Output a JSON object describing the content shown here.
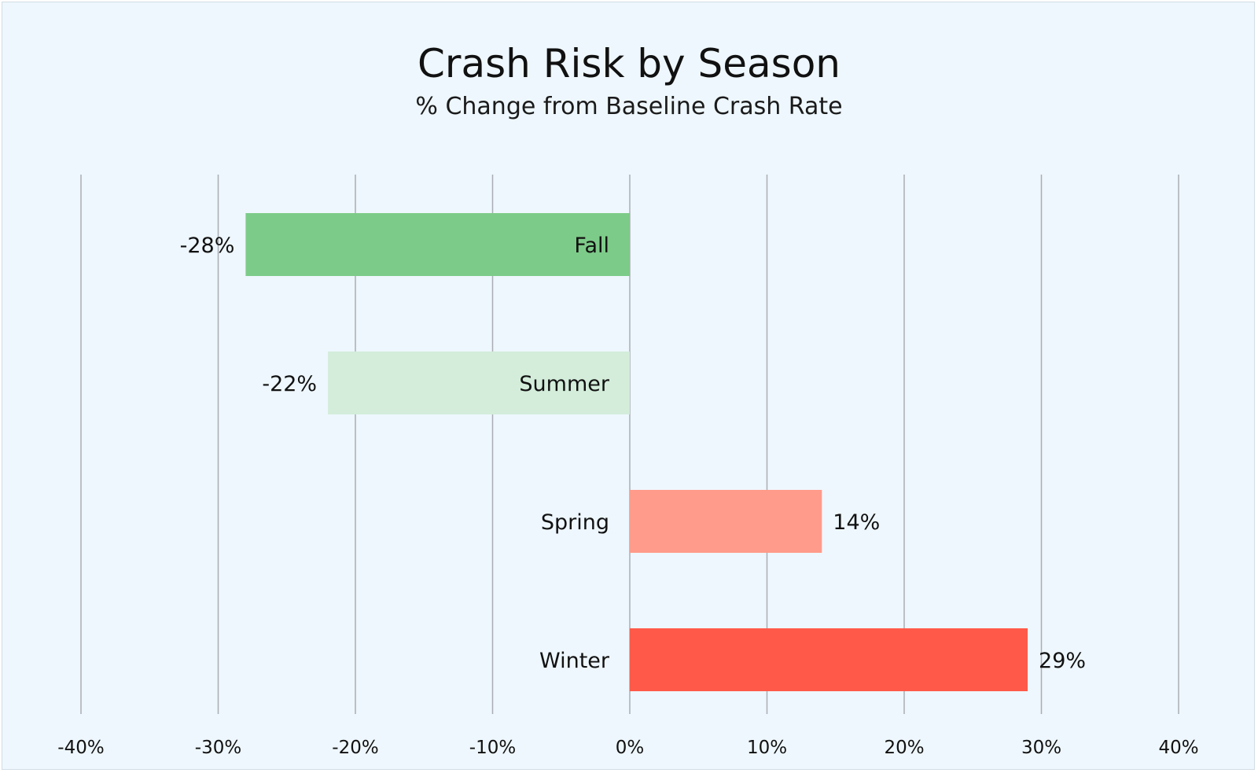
{
  "chart_data": {
    "type": "bar",
    "orientation": "horizontal",
    "title": "Crash Risk by Season",
    "subtitle": "% Change from Baseline Crash Rate",
    "categories": [
      "Fall",
      "Summer",
      "Spring",
      "Winter"
    ],
    "values": [
      -28,
      -22,
      14,
      29
    ],
    "value_labels": [
      "-28%",
      "-22%",
      "14%",
      "29%"
    ],
    "bar_colors": [
      "#7dcb89",
      "#d3edda",
      "#ff9b8a",
      "#ff5a49"
    ],
    "xlim": [
      -40,
      40
    ],
    "x_ticks": [
      -40,
      -30,
      -20,
      -10,
      0,
      10,
      20,
      30,
      40
    ],
    "x_tick_labels": [
      "-40%",
      "-30%",
      "-20%",
      "-10%",
      "0%",
      "10%",
      "20%",
      "30%",
      "40%"
    ],
    "grid": "vertical",
    "legend": "none"
  },
  "colors": {
    "background": "#eef7fd",
    "gridline": "#a9aeb3",
    "text": "#111111"
  }
}
